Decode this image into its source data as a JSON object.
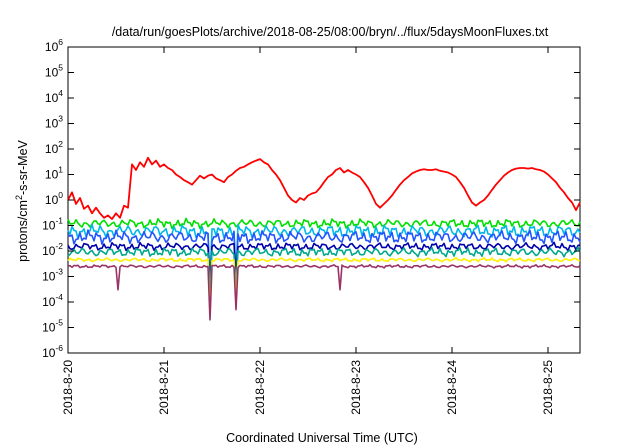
{
  "chart_data": {
    "type": "line",
    "title": "/data/run/goesPlots/archive/2018-08-25/08:00/bryn/../flux/5daysMoonFluxes.txt",
    "xlabel": "Coordinated Universal Time (UTC)",
    "ylabel": "protons/cm²-s-sr-MeV",
    "yscale": "log",
    "xlim": [
      "2018-08-20T00:00",
      "2018-08-25T08:00"
    ],
    "ylim": [
      1e-06,
      1000000.0
    ],
    "grid": false,
    "legend": "none",
    "x_ticks": [
      "2018-8-20",
      "2018-8-21",
      "2018-8-22",
      "2018-8-23",
      "2018-8-24",
      "2018-8-25"
    ],
    "y_ticks": [
      {
        "base": "10",
        "exp": "-6"
      },
      {
        "base": "10",
        "exp": "-5"
      },
      {
        "base": "10",
        "exp": "-4"
      },
      {
        "base": "10",
        "exp": "-3"
      },
      {
        "base": "10",
        "exp": "-2"
      },
      {
        "base": "10",
        "exp": "-1"
      },
      {
        "base": "10",
        "exp": "0"
      },
      {
        "base": "10",
        "exp": "1"
      },
      {
        "base": "10",
        "exp": "2"
      },
      {
        "base": "10",
        "exp": "3"
      },
      {
        "base": "10",
        "exp": "4"
      },
      {
        "base": "10",
        "exp": "5"
      },
      {
        "base": "10",
        "exp": "6"
      }
    ],
    "series": [
      {
        "color": "#ff0000",
        "points": [
          [
            "2018-08-20T00:00",
            1.0
          ],
          [
            "2018-08-20T01:00",
            2.0
          ],
          [
            "2018-08-20T02:00",
            0.7
          ],
          [
            "2018-08-20T03:00",
            1.2
          ],
          [
            "2018-08-20T04:00",
            0.45
          ],
          [
            "2018-08-20T05:00",
            0.6
          ],
          [
            "2018-08-20T06:00",
            0.3
          ],
          [
            "2018-08-20T07:00",
            0.5
          ],
          [
            "2018-08-20T08:00",
            0.3
          ],
          [
            "2018-08-20T09:00",
            0.2
          ],
          [
            "2018-08-20T10:00",
            0.25
          ],
          [
            "2018-08-20T11:00",
            0.18
          ],
          [
            "2018-08-20T12:00",
            0.3
          ],
          [
            "2018-08-20T13:00",
            0.2
          ],
          [
            "2018-08-20T14:00",
            0.6
          ],
          [
            "2018-08-20T15:00",
            0.5
          ],
          [
            "2018-08-20T16:00",
            25
          ],
          [
            "2018-08-20T17:00",
            15
          ],
          [
            "2018-08-20T18:00",
            30
          ],
          [
            "2018-08-20T19:00",
            20
          ],
          [
            "2018-08-20T20:00",
            45
          ],
          [
            "2018-08-20T21:00",
            25
          ],
          [
            "2018-08-20T22:00",
            35
          ],
          [
            "2018-08-20T23:00",
            20
          ],
          [
            "2018-08-21T00:00",
            25
          ],
          [
            "2018-08-21T01:00",
            18
          ],
          [
            "2018-08-21T02:00",
            15
          ],
          [
            "2018-08-21T03:00",
            10
          ],
          [
            "2018-08-21T04:00",
            8
          ],
          [
            "2018-08-21T05:00",
            6
          ],
          [
            "2018-08-21T06:00",
            5
          ],
          [
            "2018-08-21T07:00",
            4
          ],
          [
            "2018-08-21T08:00",
            6
          ],
          [
            "2018-08-21T09:00",
            9
          ],
          [
            "2018-08-21T10:00",
            7
          ],
          [
            "2018-08-21T11:00",
            9
          ],
          [
            "2018-08-21T12:00",
            10
          ],
          [
            "2018-08-21T13:00",
            7
          ],
          [
            "2018-08-21T14:00",
            6
          ],
          [
            "2018-08-21T15:00",
            5
          ],
          [
            "2018-08-21T16:00",
            8
          ],
          [
            "2018-08-21T17:00",
            10
          ],
          [
            "2018-08-21T18:00",
            14
          ],
          [
            "2018-08-21T19:00",
            18
          ],
          [
            "2018-08-21T20:00",
            20
          ],
          [
            "2018-08-21T21:00",
            25
          ],
          [
            "2018-08-21T22:00",
            30
          ],
          [
            "2018-08-21T23:00",
            35
          ],
          [
            "2018-08-22T00:00",
            40
          ],
          [
            "2018-08-22T01:00",
            30
          ],
          [
            "2018-08-22T02:00",
            25
          ],
          [
            "2018-08-22T03:00",
            15
          ],
          [
            "2018-08-22T04:00",
            10
          ],
          [
            "2018-08-22T05:00",
            6
          ],
          [
            "2018-08-22T06:00",
            3
          ],
          [
            "2018-08-22T07:00",
            1.5
          ],
          [
            "2018-08-22T08:00",
            1.0
          ],
          [
            "2018-08-22T09:00",
            0.8
          ],
          [
            "2018-08-22T10:00",
            1.2
          ],
          [
            "2018-08-22T11:00",
            1.0
          ],
          [
            "2018-08-22T12:00",
            1.5
          ],
          [
            "2018-08-22T13:00",
            1.8
          ],
          [
            "2018-08-22T14:00",
            2.0
          ],
          [
            "2018-08-22T15:00",
            3.0
          ],
          [
            "2018-08-22T16:00",
            5
          ],
          [
            "2018-08-22T17:00",
            8
          ],
          [
            "2018-08-22T18:00",
            10
          ],
          [
            "2018-08-22T19:00",
            15
          ],
          [
            "2018-08-22T20:00",
            18
          ],
          [
            "2018-08-22T21:00",
            12
          ],
          [
            "2018-08-22T22:00",
            15
          ],
          [
            "2018-08-22T23:00",
            12
          ],
          [
            "2018-08-23T00:00",
            10
          ],
          [
            "2018-08-23T01:00",
            8
          ],
          [
            "2018-08-23T02:00",
            5
          ],
          [
            "2018-08-23T03:00",
            3
          ],
          [
            "2018-08-23T04:00",
            1.5
          ],
          [
            "2018-08-23T05:00",
            0.7
          ],
          [
            "2018-08-23T06:00",
            0.5
          ],
          [
            "2018-08-23T07:00",
            0.7
          ],
          [
            "2018-08-23T08:00",
            1.0
          ],
          [
            "2018-08-23T09:00",
            1.5
          ],
          [
            "2018-08-23T10:00",
            2.5
          ],
          [
            "2018-08-23T11:00",
            4
          ],
          [
            "2018-08-23T12:00",
            6
          ],
          [
            "2018-08-23T13:00",
            8
          ],
          [
            "2018-08-23T14:00",
            11
          ],
          [
            "2018-08-23T15:00",
            13
          ],
          [
            "2018-08-23T16:00",
            15
          ],
          [
            "2018-08-23T17:00",
            16
          ],
          [
            "2018-08-23T18:00",
            15
          ],
          [
            "2018-08-23T19:00",
            15
          ],
          [
            "2018-08-23T20:00",
            16
          ],
          [
            "2018-08-23T21:00",
            14
          ],
          [
            "2018-08-23T22:00",
            13
          ],
          [
            "2018-08-23T23:00",
            12
          ],
          [
            "2018-08-24T00:00",
            10
          ],
          [
            "2018-08-24T01:00",
            8
          ],
          [
            "2018-08-24T02:00",
            5
          ],
          [
            "2018-08-24T03:00",
            3
          ],
          [
            "2018-08-24T04:00",
            1.5
          ],
          [
            "2018-08-24T05:00",
            0.8
          ],
          [
            "2018-08-24T06:00",
            0.6
          ],
          [
            "2018-08-24T07:00",
            0.8
          ],
          [
            "2018-08-24T08:00",
            1.0
          ],
          [
            "2018-08-24T09:00",
            1.5
          ],
          [
            "2018-08-24T10:00",
            2.5
          ],
          [
            "2018-08-24T11:00",
            4
          ],
          [
            "2018-08-24T12:00",
            6
          ],
          [
            "2018-08-24T13:00",
            9
          ],
          [
            "2018-08-24T14:00",
            12
          ],
          [
            "2018-08-24T15:00",
            15
          ],
          [
            "2018-08-24T16:00",
            17
          ],
          [
            "2018-08-24T17:00",
            18
          ],
          [
            "2018-08-24T18:00",
            18
          ],
          [
            "2018-08-24T19:00",
            17
          ],
          [
            "2018-08-24T20:00",
            18
          ],
          [
            "2018-08-24T21:00",
            16
          ],
          [
            "2018-08-24T22:00",
            15
          ],
          [
            "2018-08-24T23:00",
            13
          ],
          [
            "2018-08-25T00:00",
            10
          ],
          [
            "2018-08-25T01:00",
            7
          ],
          [
            "2018-08-25T02:00",
            5
          ],
          [
            "2018-08-25T03:00",
            3
          ],
          [
            "2018-08-25T04:00",
            2
          ],
          [
            "2018-08-25T05:00",
            1.2
          ],
          [
            "2018-08-25T06:00",
            0.8
          ],
          [
            "2018-08-25T07:00",
            0.4
          ],
          [
            "2018-08-25T08:00",
            0.8
          ]
        ]
      },
      {
        "color": "#00e000",
        "base": 0.12,
        "amplitude": 0.35,
        "dips": []
      },
      {
        "color": "#00b8e8",
        "base": 0.06,
        "amplitude": 0.5,
        "dips": [
          [
            "2018-08-21T11:30",
            0.0005
          ],
          [
            "2018-08-21T18:00",
            0.001
          ]
        ]
      },
      {
        "color": "#2255ff",
        "base": 0.035,
        "amplitude": 0.5,
        "dips": [
          [
            "2018-08-21T11:30",
            0.0002
          ],
          [
            "2018-08-21T18:00",
            0.0004
          ]
        ]
      },
      {
        "color": "#0000aa",
        "base": 0.015,
        "amplitude": 0.3,
        "dips": [
          [
            "2018-08-21T11:30",
            0.0005
          ],
          [
            "2018-08-21T18:00",
            0.001
          ]
        ]
      },
      {
        "color": "#00a890",
        "base": 0.009,
        "amplitude": 0.35,
        "dips": [
          [
            "2018-08-21T11:30",
            0.00015
          ],
          [
            "2018-08-21T18:00",
            0.0003
          ]
        ]
      },
      {
        "color": "#ffee00",
        "base": 0.0045,
        "amplitude": 0.15,
        "dips": [
          [
            "2018-08-21T11:30",
            3e-05
          ],
          [
            "2018-08-21T18:00",
            0.0001
          ]
        ]
      },
      {
        "color": "#993366",
        "base": 0.0025,
        "amplitude": 0.12,
        "dips": [
          [
            "2018-08-20T12:30",
            0.0003
          ],
          [
            "2018-08-21T11:30",
            2e-05
          ],
          [
            "2018-08-21T18:00",
            5e-05
          ],
          [
            "2018-08-22T20:00",
            0.0003
          ]
        ]
      }
    ]
  }
}
